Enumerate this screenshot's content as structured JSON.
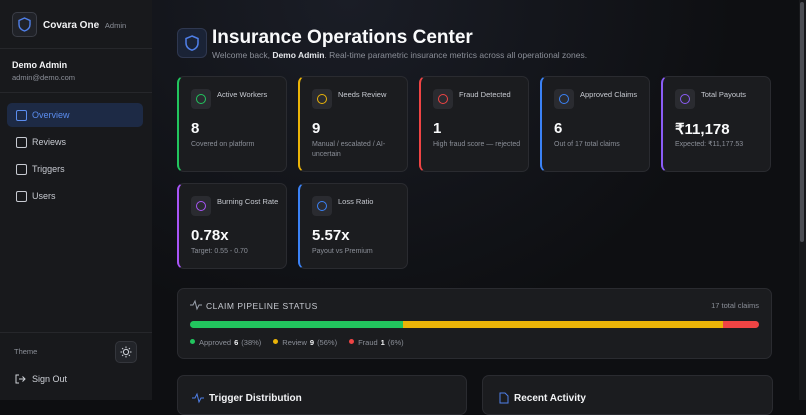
{
  "brand": {
    "name": "Covara One",
    "role": "Admin"
  },
  "user": {
    "name": "Demo Admin",
    "email": "admin@demo.com"
  },
  "nav": [
    {
      "label": "Overview",
      "active": true
    },
    {
      "label": "Reviews",
      "active": false
    },
    {
      "label": "Triggers",
      "active": false
    },
    {
      "label": "Users",
      "active": false
    }
  ],
  "theme_label": "Theme",
  "sign_out": "Sign Out",
  "header": {
    "title": "Insurance Operations Center",
    "welcome_prefix": "Welcome back, ",
    "welcome_name": "Demo Admin",
    "welcome_suffix": ". Real-time parametric insurance metrics across all operational zones."
  },
  "stats": [
    {
      "label": "Active Workers",
      "value": 8,
      "note": "Covered on platform",
      "color": "#22c55e"
    },
    {
      "label": "Needs Review",
      "value": 9,
      "note": "Manual / escalated / AI-uncertain",
      "color": "#eab308"
    },
    {
      "label": "Fraud Detected",
      "value": 1,
      "note": "High fraud score — rejected",
      "color": "#ef4444"
    },
    {
      "label": "Approved Claims",
      "value": 6,
      "note": "Out of 17 total claims",
      "color": "#3b82f6"
    },
    {
      "label": "Total Payouts",
      "value": "₹11,178",
      "note": "Expected: ₹11,177.53",
      "color": "#8b5cf6"
    },
    {
      "label": "Burning Cost Rate",
      "value": "0.78x",
      "note": "Target: 0.55 - 0.70",
      "color": "#a855f7"
    },
    {
      "label": "Loss Ratio",
      "value": "5.57x",
      "note": "Payout vs Premium",
      "color": "#3b82f6"
    }
  ],
  "pipeline": {
    "title": "CLAIM PIPELINE STATUS",
    "total_label": "17 total claims",
    "segments": [
      {
        "name": "Approved",
        "count": 6,
        "pct": "(38%)",
        "color": "#22c55e"
      },
      {
        "name": "Review",
        "count": 9,
        "pct": "(56%)",
        "color": "#eab308"
      },
      {
        "name": "Fraud",
        "count": 1,
        "pct": "(6%)",
        "color": "#ef4444"
      }
    ]
  },
  "panels": [
    {
      "title": "Trigger Distribution"
    },
    {
      "title": "Recent Activity"
    }
  ]
}
